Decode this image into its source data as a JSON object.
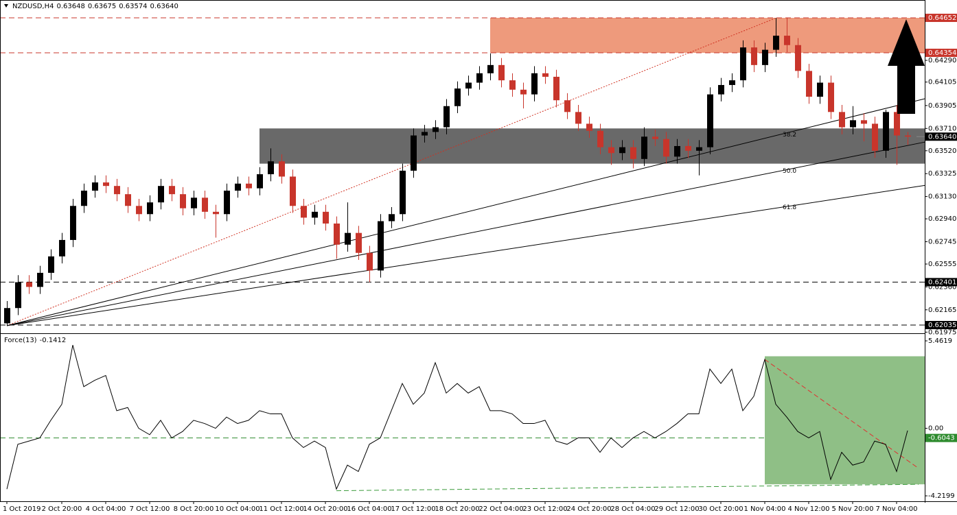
{
  "chart_data": [
    {
      "type": "candlestick",
      "title": "NZDUSD,H4",
      "quote": [
        0.63648,
        0.63675,
        0.63574,
        {
          "value": 0.6364,
          "label": "0.63640"
        }
      ],
      "categories": [
        "1 Oct 2019",
        null,
        null,
        null,
        null,
        "2 Oct 20:00",
        null,
        null,
        null,
        "4 Oct 04:00",
        null,
        null,
        null,
        "7 Oct 12:00",
        null,
        null,
        null,
        "8 Oct 20:00",
        null,
        null,
        null,
        "10 Oct 04:00",
        null,
        null,
        null,
        "11 Oct 12:00",
        null,
        null,
        null,
        "14 Oct 20:00",
        null,
        null,
        null,
        "16 Oct 04:00",
        null,
        null,
        null,
        "17 Oct 12:00",
        null,
        null,
        null,
        "18 Oct 20:00",
        null,
        null,
        null,
        "22 Oct 04:00",
        null,
        null,
        null,
        "23 Oct 12:00",
        null,
        null,
        null,
        "24 Oct 20:00",
        null,
        null,
        null,
        "28 Oct 04:00",
        null,
        null,
        null,
        "29 Oct 12:00",
        null,
        null,
        null,
        "30 Oct 20:00",
        null,
        null,
        null,
        "1 Nov 04:00",
        null,
        null,
        null,
        "4 Nov 12:00",
        null,
        null,
        null,
        "5 Nov 20:00",
        null,
        null,
        null,
        "7 Nov 04:00",
        null
      ],
      "open": [
        0.6205,
        0.6218,
        0.624,
        0.6236,
        0.6248,
        0.6262,
        0.6276,
        0.6305,
        0.6318,
        0.6325,
        0.6322,
        0.6315,
        0.6305,
        0.6298,
        0.6308,
        0.6322,
        0.6315,
        0.6303,
        0.6312,
        0.63,
        0.6298,
        0.6318,
        0.6324,
        0.632,
        0.6332,
        0.6343,
        0.633,
        0.6305,
        0.6295,
        0.63,
        0.629,
        0.6272,
        0.6282,
        0.6265,
        0.625,
        0.6292,
        0.6298,
        0.6335,
        0.6365,
        0.6368,
        0.6372,
        0.639,
        0.6405,
        0.641,
        0.6418,
        0.6425,
        0.6412,
        0.6404,
        0.64,
        0.6418,
        0.6415,
        0.6395,
        0.6385,
        0.6375,
        0.6369,
        0.6355,
        0.635,
        0.6355,
        0.6345,
        0.6364,
        0.6362,
        0.6347,
        0.6356,
        0.6352,
        0.6355,
        0.64,
        0.6408,
        0.6412,
        0.644,
        0.6425,
        0.6438,
        0.645,
        0.6442,
        0.642,
        0.6398,
        0.641,
        0.6385,
        0.6372,
        0.6378,
        0.6375,
        0.6352,
        0.6385,
        0.6365
      ],
      "high": [
        0.6224,
        0.6246,
        0.6246,
        0.6254,
        0.6268,
        0.6282,
        0.6311,
        0.6324,
        0.6331,
        0.6331,
        0.6328,
        0.6321,
        0.6311,
        0.6314,
        0.6328,
        0.6328,
        0.6321,
        0.6318,
        0.6318,
        0.6306,
        0.6324,
        0.633,
        0.633,
        0.6338,
        0.6354,
        0.6349,
        0.6336,
        0.6311,
        0.6306,
        0.6306,
        0.6296,
        0.6308,
        0.6288,
        0.6271,
        0.6298,
        0.6304,
        0.6341,
        0.6371,
        0.6374,
        0.6378,
        0.6396,
        0.6411,
        0.6416,
        0.6424,
        0.6435,
        0.6431,
        0.6418,
        0.641,
        0.6424,
        0.6424,
        0.6421,
        0.6401,
        0.6391,
        0.6381,
        0.6375,
        0.6361,
        0.6361,
        0.6361,
        0.6372,
        0.637,
        0.6368,
        0.6362,
        0.6362,
        0.6361,
        0.6406,
        0.6414,
        0.6418,
        0.6446,
        0.6446,
        0.6444,
        0.6465,
        0.6465,
        0.6448,
        0.6426,
        0.6416,
        0.6416,
        0.6391,
        0.639,
        0.6384,
        0.6381,
        0.6387,
        0.6391,
        0.6368
      ],
      "low": [
        0.6203,
        0.6212,
        0.623,
        0.623,
        0.6242,
        0.6256,
        0.627,
        0.6299,
        0.6312,
        0.6316,
        0.6309,
        0.6299,
        0.6292,
        0.6292,
        0.6302,
        0.6309,
        0.6297,
        0.6297,
        0.6294,
        0.6278,
        0.6292,
        0.6312,
        0.6314,
        0.6314,
        0.6326,
        0.6324,
        0.6299,
        0.6289,
        0.6289,
        0.6284,
        0.626,
        0.6266,
        0.6259,
        0.624,
        0.6244,
        0.6286,
        0.6292,
        0.6329,
        0.6359,
        0.6362,
        0.6366,
        0.6384,
        0.6399,
        0.6404,
        0.6412,
        0.6406,
        0.6398,
        0.6388,
        0.6394,
        0.6409,
        0.6389,
        0.6379,
        0.6369,
        0.6363,
        0.6349,
        0.634,
        0.6344,
        0.6337,
        0.6339,
        0.6356,
        0.6341,
        0.6341,
        0.6346,
        0.6331,
        0.6349,
        0.6394,
        0.6402,
        0.6406,
        0.6419,
        0.6419,
        0.6432,
        0.6436,
        0.6414,
        0.6392,
        0.6392,
        0.6379,
        0.6366,
        0.6366,
        0.636,
        0.6346,
        0.6346,
        0.634,
        0.6357
      ],
      "close": [
        0.6218,
        0.624,
        0.6236,
        0.6248,
        0.6262,
        0.6276,
        0.6305,
        0.6318,
        0.6325,
        0.6322,
        0.6315,
        0.6305,
        0.6298,
        0.6308,
        0.6322,
        0.6315,
        0.6303,
        0.6312,
        0.63,
        0.6298,
        0.6318,
        0.6324,
        0.632,
        0.6332,
        0.6343,
        0.633,
        0.6305,
        0.6295,
        0.63,
        0.629,
        0.6272,
        0.6282,
        0.6265,
        0.625,
        0.6292,
        0.6298,
        0.6335,
        0.6365,
        0.6368,
        0.6372,
        0.639,
        0.6405,
        0.641,
        0.6418,
        0.6425,
        0.6412,
        0.6404,
        0.64,
        0.6418,
        0.6415,
        0.6395,
        0.6385,
        0.6375,
        0.6369,
        0.6355,
        0.635,
        0.6355,
        0.6345,
        0.6364,
        0.6362,
        0.6347,
        0.6356,
        0.6352,
        0.6355,
        0.64,
        0.6408,
        0.6412,
        0.644,
        0.6425,
        0.6438,
        0.645,
        0.6442,
        0.642,
        0.6398,
        0.641,
        0.6385,
        0.6372,
        0.6378,
        0.6375,
        0.6352,
        0.6385,
        0.6365,
        0.6364
      ],
      "up_color": "#000000",
      "down_color": "#c8352b",
      "ylim": [
        0.61971,
        0.64804
      ],
      "yticks": [
        {
          "value": 0.6429,
          "label": "0.64290"
        },
        0.64105,
        {
          "value": 0.63905,
          "label": "0.63905"
        },
        {
          "value": 0.6371,
          "label": "0.63710"
        },
        {
          "value": 0.6352,
          "label": "0.63520"
        },
        0.63325,
        {
          "value": 0.6313,
          "label": "0.63130"
        },
        {
          "value": 0.6294,
          "label": "0.62940"
        },
        0.62745,
        0.62555,
        {
          "value": 0.6236,
          "label": "0.62360"
        },
        0.62165,
        0.61975
      ],
      "levels": [
        {
          "value": 0.64652,
          "color": "#c8352b"
        },
        {
          "value": 0.64354,
          "color": "#c8352b"
        },
        {
          "value": 0.62401,
          "color": "#000000"
        },
        {
          "value": 0.62035,
          "color": "#000000"
        }
      ],
      "current_price": {
        "value": 0.6364,
        "label": "0.63640"
      },
      "zones": [
        {
          "from": 44,
          "low": 0.64354,
          "high": 0.64652,
          "color": "#ee9a7c"
        },
        {
          "from": 23,
          "low": 0.6341,
          "high": 0.6371,
          "color": "#696969"
        }
      ],
      "fan": {
        "start": [
          0,
          0.6203
        ],
        "end": [
          70,
          0.6465
        ],
        "levels": [
          38.2,
          {
            "value": 50,
            "label": "50.0"
          },
          61.8
        ],
        "color": "#000000",
        "guide_color": "#d03020"
      }
    },
    {
      "type": "line",
      "title": "Force(13)",
      "values": [
        -3.8,
        -1.0,
        -0.8,
        -0.6,
        0.5,
        1.5,
        5.2,
        2.6,
        3.0,
        3.3,
        1.1,
        1.3,
        0,
        -0.4,
        0.5,
        -0.6,
        -0.2,
        0.5,
        0.3,
        0,
        0.7,
        0.3,
        0.5,
        1.1,
        0.9,
        0.9,
        -0.6,
        -1.2,
        -0.8,
        -1.2,
        -3.8,
        -2.3,
        -2.7,
        -1.0,
        -0.6,
        1.1,
        2.8,
        1.5,
        2.2,
        4.1,
        2.2,
        2.8,
        2.2,
        2.6,
        1.1,
        1.1,
        0.9,
        0.3,
        0.3,
        0.5,
        -0.8,
        -1.0,
        -0.6,
        -0.6,
        -1.5,
        -0.6,
        -1.2,
        -0.6,
        -0.2,
        -0.6,
        -0.2,
        0.3,
        0.9,
        0.9,
        3.7,
        2.8,
        3.7,
        1.1,
        2.0,
        4.3,
        1.5,
        0.7,
        -0.2,
        -0.6,
        -0.2,
        -3.2,
        -1.5,
        -2.3,
        -2.1,
        -0.8,
        -1.0,
        -2.7,
        -0.1412
      ],
      "color": "#000000",
      "ylim": [
        -4.56,
        5.85
      ],
      "yticks": [
        5.4619,
        {
          "value": 0,
          "label": "0.00"
        },
        -4.2199
      ],
      "levels": [
        {
          "value": -0.6043,
          "color": "#2e8b2e"
        }
      ],
      "zone": {
        "from": 69,
        "top": 4.5,
        "bottom": -3.5,
        "color": "#8fbf86"
      },
      "trendlines": [
        {
          "from": [
            69,
            4.3
          ],
          "to": [
            83,
            -2.5
          ],
          "color": "#e03030"
        },
        {
          "from": [
            30,
            -3.9
          ],
          "to": [
            83,
            -3.5
          ],
          "color": "#3a9a3a"
        }
      ]
    }
  ]
}
